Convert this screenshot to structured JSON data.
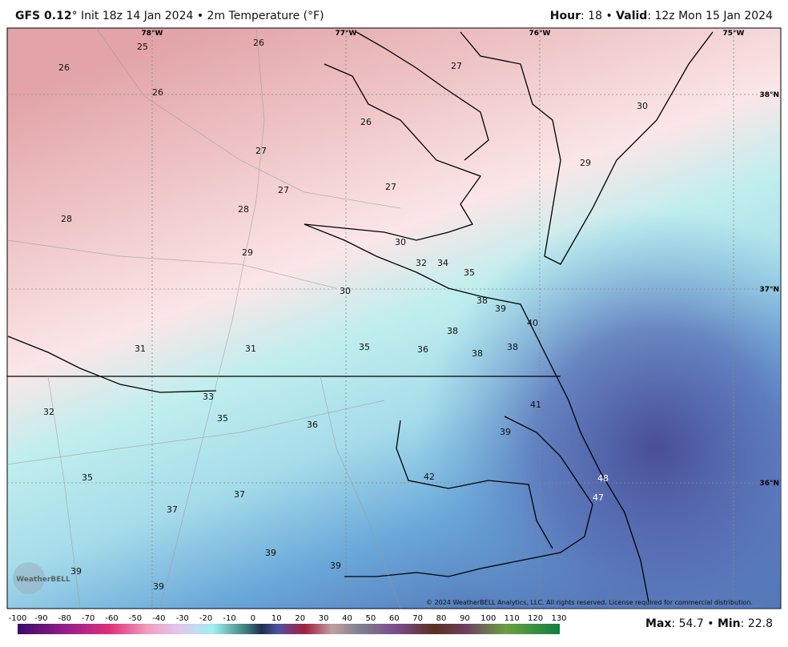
{
  "header": {
    "model": "GFS 0.12",
    "info": "° Init 18z 14 Jan 2024 • 2m Temperature (°F)",
    "hour_label": "Hour",
    "hour_text": ": 18 •",
    "valid_label": "Valid",
    "valid_text": ": 12z Mon 15 Jan 2024"
  },
  "map": {
    "longitudes": [
      "78°W",
      "77°W",
      "76°W",
      "75°W"
    ],
    "latitudes": [
      "38°N",
      "37°N",
      "36°N"
    ],
    "temperatures": [
      25,
      26,
      26,
      26,
      27,
      26,
      30,
      29,
      27,
      27,
      27,
      28,
      28,
      29,
      30,
      32,
      34,
      35,
      30,
      38,
      39,
      40,
      38,
      38,
      38,
      31,
      31,
      35,
      36,
      33,
      41,
      32,
      35,
      36,
      39,
      42,
      48,
      35,
      47,
      37,
      37,
      39,
      39,
      39,
      39
    ],
    "copyright": "© 2024 WeatherBELL Analytics, LLC. All rights reserved. License required for commercial distribution.",
    "logo": "WeatherBELL"
  },
  "colorbar": {
    "ticks": [
      -100,
      -90,
      -80,
      -70,
      -60,
      -50,
      -40,
      -30,
      -20,
      -10,
      0,
      10,
      20,
      30,
      40,
      50,
      60,
      70,
      80,
      90,
      100,
      110,
      120,
      130
    ]
  },
  "footer": {
    "max_label": "Max",
    "max_text": ": 54.7 •",
    "min_label": "Min",
    "min_text": ": 22.8"
  }
}
